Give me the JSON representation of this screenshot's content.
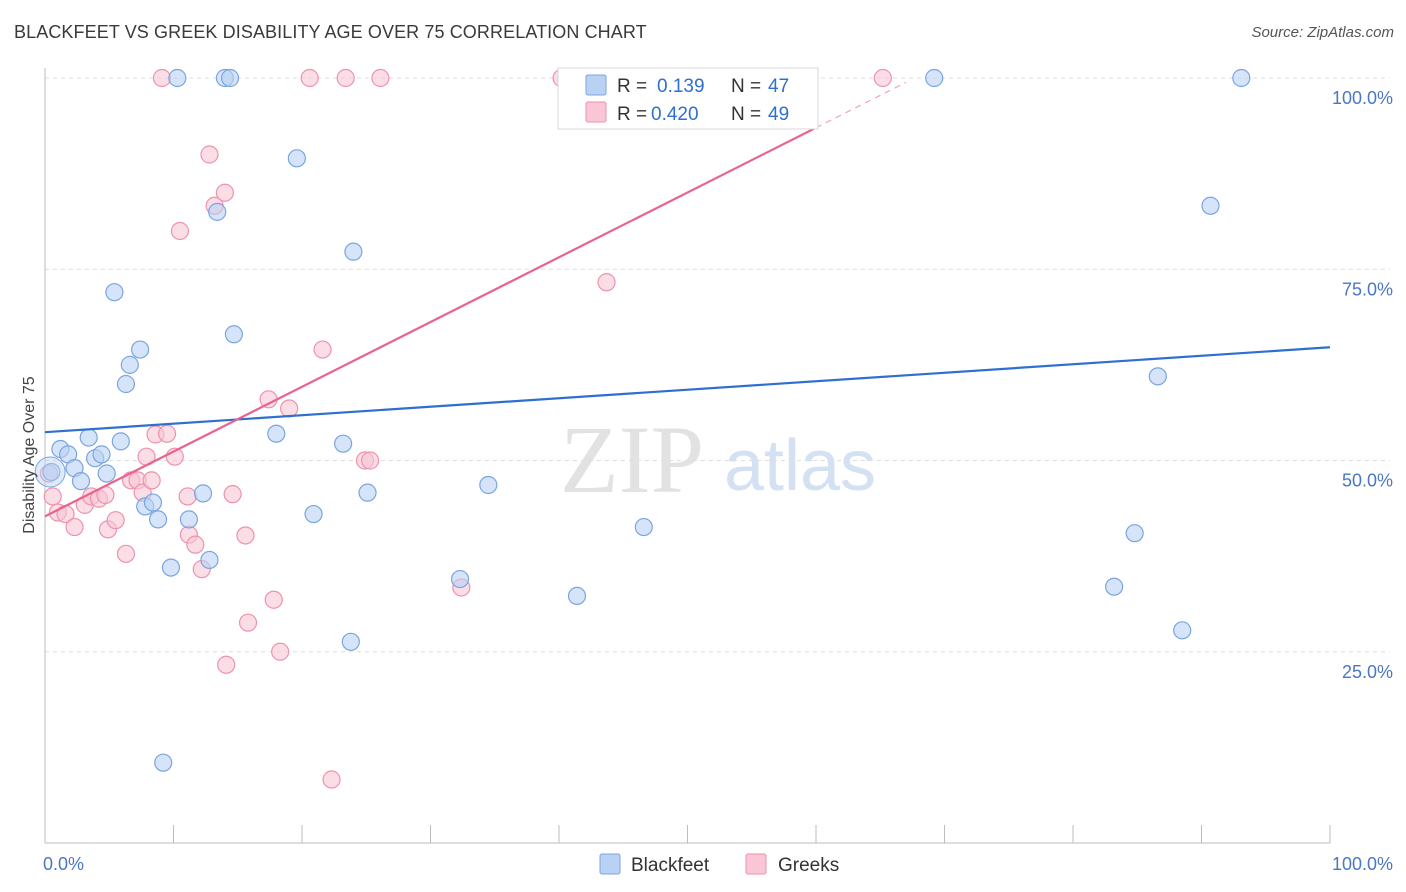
{
  "title": "BLACKFEET VS GREEK DISABILITY AGE OVER 75 CORRELATION CHART",
  "source": "Source: ZipAtlas.com",
  "watermark": {
    "zip": "ZIP",
    "atlas": "atlas"
  },
  "colors": {
    "blackfeet_fill": "#b9d2f3",
    "blackfeet_stroke": "#7aa5e0",
    "blackfeet_line": "#2f6fd0",
    "greeks_fill": "#f8c6d5",
    "greeks_stroke": "#ee92ae",
    "greeks_line": "#e8648e",
    "tick_label": "#4a77c4"
  },
  "legend": {
    "r_label": "R = ",
    "n_label": "N = ",
    "rows": [
      {
        "series": "Blackfeet",
        "r": "0.139",
        "n": "47"
      },
      {
        "series": "Greeks",
        "r": "0.420",
        "n": "49"
      }
    ]
  },
  "chart_data": {
    "type": "scatter",
    "title": "BLACKFEET VS GREEK DISABILITY AGE OVER 75 CORRELATION CHART",
    "xlabel": "",
    "ylabel": "Disability Age Over 75",
    "xlim": [
      0,
      100
    ],
    "ylim": [
      0,
      100
    ],
    "x_tick_labels": [
      "0.0%",
      "100.0%"
    ],
    "y_ticks": [
      25,
      50,
      75,
      100
    ],
    "y_tick_labels": [
      "25.0%",
      "50.0%",
      "75.0%",
      "100.0%"
    ],
    "grid": true,
    "legend_position": "top-center",
    "series": [
      {
        "name": "Blackfeet",
        "points": [
          [
            0.5,
            48.5
          ],
          [
            1.2,
            51.5
          ],
          [
            1.8,
            50.8
          ],
          [
            2.3,
            49
          ],
          [
            2.8,
            47.3
          ],
          [
            3.4,
            53
          ],
          [
            3.9,
            50.3
          ],
          [
            4.4,
            50.8
          ],
          [
            4.8,
            48.3
          ],
          [
            5.4,
            72
          ],
          [
            5.9,
            52.5
          ],
          [
            6.3,
            60
          ],
          [
            6.6,
            62.5
          ],
          [
            7.4,
            64.5
          ],
          [
            7.8,
            44
          ],
          [
            8.4,
            44.5
          ],
          [
            8.8,
            42.3
          ],
          [
            9.2,
            10.5
          ],
          [
            9.8,
            36
          ],
          [
            10.3,
            100
          ],
          [
            11.2,
            42.3
          ],
          [
            12.3,
            45.7
          ],
          [
            12.8,
            37
          ],
          [
            13.4,
            82.5
          ],
          [
            14.0,
            100
          ],
          [
            14.4,
            100
          ],
          [
            14.7,
            66.5
          ],
          [
            18.0,
            53.5
          ],
          [
            19.6,
            89.5
          ],
          [
            20.9,
            43
          ],
          [
            23.2,
            52.2
          ],
          [
            23.8,
            26.3
          ],
          [
            24.0,
            77.3
          ],
          [
            25.1,
            45.8
          ],
          [
            32.3,
            34.5
          ],
          [
            34.5,
            46.8
          ],
          [
            41.4,
            32.3
          ],
          [
            46.6,
            41.3
          ],
          [
            47.8,
            100
          ],
          [
            49.9,
            100
          ],
          [
            69.2,
            100
          ],
          [
            83.2,
            33.5
          ],
          [
            84.8,
            40.5
          ],
          [
            86.6,
            61
          ],
          [
            88.5,
            27.8
          ],
          [
            90.7,
            83.3
          ],
          [
            93.1,
            100
          ]
        ]
      },
      {
        "name": "Greeks",
        "points": [
          [
            0.3,
            48.3
          ],
          [
            0.6,
            45.3
          ],
          [
            1.0,
            43.2
          ],
          [
            1.6,
            43
          ],
          [
            2.3,
            41.3
          ],
          [
            3.1,
            44.2
          ],
          [
            3.6,
            45.3
          ],
          [
            4.2,
            45
          ],
          [
            4.7,
            45.5
          ],
          [
            4.9,
            41
          ],
          [
            5.5,
            42.2
          ],
          [
            6.3,
            37.8
          ],
          [
            6.7,
            47.4
          ],
          [
            7.2,
            47.4
          ],
          [
            7.6,
            45.8
          ],
          [
            7.9,
            50.5
          ],
          [
            8.3,
            47.4
          ],
          [
            8.6,
            53.4
          ],
          [
            9.1,
            100
          ],
          [
            9.5,
            53.5
          ],
          [
            10.1,
            50.5
          ],
          [
            10.5,
            80
          ],
          [
            11.1,
            45.3
          ],
          [
            11.2,
            40.3
          ],
          [
            11.7,
            39
          ],
          [
            12.2,
            35.8
          ],
          [
            12.8,
            90
          ],
          [
            13.2,
            83.3
          ],
          [
            14.0,
            85
          ],
          [
            14.6,
            45.6
          ],
          [
            15.6,
            40.2
          ],
          [
            15.8,
            28.8
          ],
          [
            14.1,
            23.3
          ],
          [
            17.4,
            58
          ],
          [
            17.8,
            31.8
          ],
          [
            18.3,
            25
          ],
          [
            19.0,
            56.8
          ],
          [
            20.6,
            100
          ],
          [
            21.6,
            64.5
          ],
          [
            22.3,
            8.3
          ],
          [
            23.4,
            100
          ],
          [
            24.9,
            50
          ],
          [
            25.3,
            50
          ],
          [
            26.1,
            100
          ],
          [
            32.4,
            33.4
          ],
          [
            40.2,
            100
          ],
          [
            43.7,
            73.3
          ],
          [
            52.2,
            100
          ],
          [
            65.2,
            100
          ]
        ]
      }
    ],
    "trendlines": [
      {
        "series": "Blackfeet",
        "x": [
          0,
          100
        ],
        "y": [
          53.7,
          64.8
        ]
      },
      {
        "series": "Greeks",
        "x": [
          0,
          60
        ],
        "y": [
          42.7,
          93.5
        ],
        "dashed_extension_to": [
          67,
          100
        ]
      }
    ]
  }
}
